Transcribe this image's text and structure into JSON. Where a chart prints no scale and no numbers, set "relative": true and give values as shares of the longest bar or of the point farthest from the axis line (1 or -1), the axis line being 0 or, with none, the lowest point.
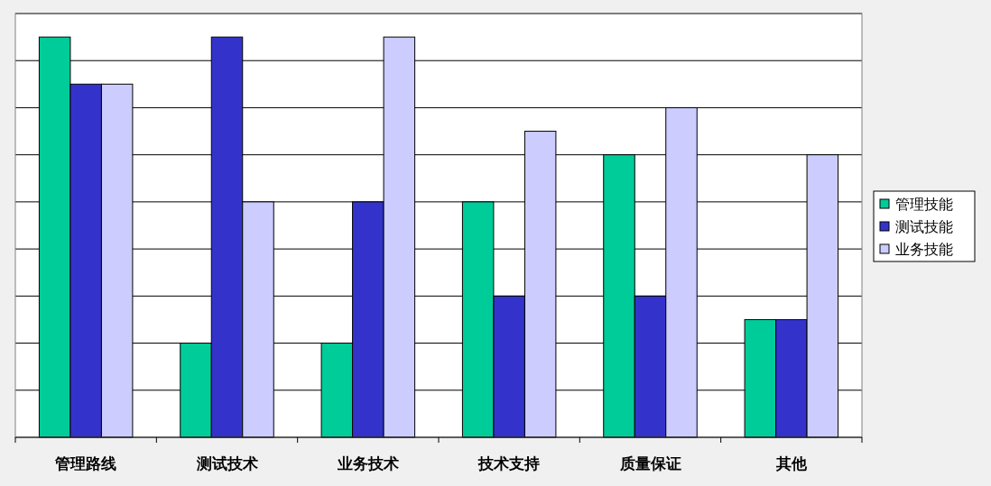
{
  "chart_data": {
    "type": "bar",
    "relative": true,
    "grid": "y",
    "legend": "right",
    "categories": [
      "管理路线",
      "测试技术",
      "业务技术",
      "技术支持",
      "质量保证",
      "其他"
    ],
    "series": [
      {
        "name": "管理技能",
        "color": "#00cc99",
        "values": [
          1,
          0.2353,
          0.2353,
          0.5882,
          0.7059,
          0.2941
        ]
      },
      {
        "name": "测试技能",
        "color": "#3333cc",
        "values": [
          0.8824,
          1,
          0.5882,
          0.3529,
          0.3529,
          0.2941
        ]
      },
      {
        "name": "业务技能",
        "color": "#ccccff",
        "values": [
          0.8824,
          0.5882,
          1,
          0.7647,
          0.8235,
          0.7059
        ]
      }
    ]
  }
}
